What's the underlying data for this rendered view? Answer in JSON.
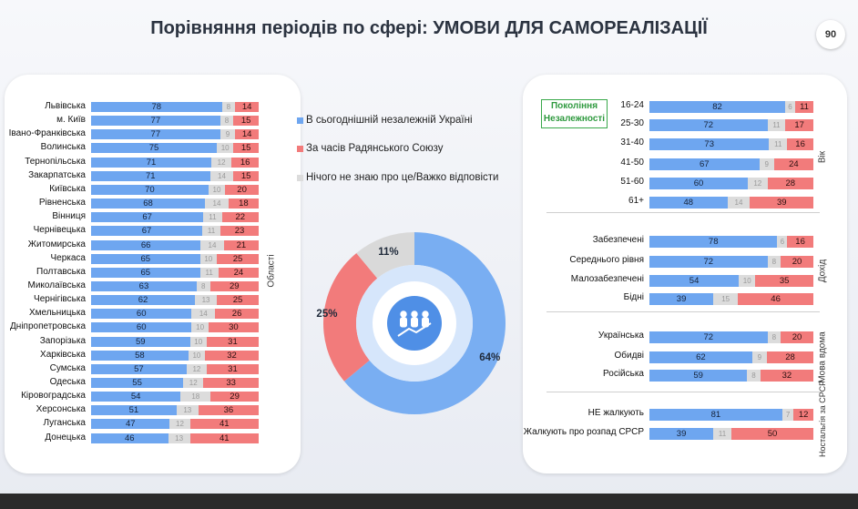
{
  "page": {
    "title": "Порівняння періодів по сфері: УМОВИ ДЛЯ САМОРЕАЛІЗАЦІЇ",
    "page_number": "90"
  },
  "colors": {
    "blue": "#6ea6f0",
    "red": "#f27b7b",
    "gray": "#dcdcdc",
    "donut_blue": "#79aef2",
    "donut_red": "#f27b7b",
    "donut_gray": "#d9d9d9",
    "generation_green": "#39a84a"
  },
  "legend": [
    {
      "label": "В сьогоднішній незалежній Україні",
      "color": "#6ea6f0"
    },
    {
      "label": "За часів Радянського Союзу",
      "color": "#f27b7b"
    },
    {
      "label": "Нічого не знаю про це/Важко відповісти",
      "color": "#dcdcdc"
    }
  ],
  "generation_label": "Покоління Незалежності",
  "chart_data": [
    {
      "type": "bar",
      "orientation": "horizontal",
      "stacked": true,
      "group_label": "Області",
      "categories": [
        "Львівська",
        "м. Київ",
        "Івано-Франківська",
        "Волинська",
        "Тернопільська",
        "Закарпатська",
        "Київська",
        "Рівненська",
        "Вінниця",
        "Чернівецька",
        "Житомирська",
        "Черкаса",
        "Полтавська",
        "Миколаївська",
        "Чернігівська",
        "Хмельницька",
        "Дніпропетровська",
        "Запорізька",
        "Харківська",
        "Сумська",
        "Одеська",
        "Кіровоградська",
        "Херсонська",
        "Луганська",
        "Донецька"
      ],
      "series": [
        {
          "name": "В сьогоднішній незалежній Україні",
          "values": [
            78,
            77,
            77,
            75,
            71,
            71,
            70,
            68,
            67,
            67,
            66,
            65,
            65,
            63,
            62,
            60,
            60,
            59,
            58,
            57,
            55,
            54,
            51,
            47,
            46
          ]
        },
        {
          "name": "Нічого не знаю про це/Важко відповісти",
          "values": [
            8,
            8,
            9,
            10,
            12,
            14,
            10,
            14,
            11,
            11,
            14,
            10,
            11,
            8,
            13,
            14,
            10,
            10,
            10,
            12,
            12,
            18,
            13,
            12,
            13
          ]
        },
        {
          "name": "За часів Радянського Союзу",
          "values": [
            14,
            15,
            14,
            15,
            16,
            15,
            20,
            18,
            22,
            23,
            21,
            25,
            24,
            29,
            25,
            26,
            30,
            31,
            32,
            31,
            33,
            29,
            36,
            41,
            41
          ]
        }
      ]
    },
    {
      "type": "pie",
      "variant": "donut",
      "labels": [
        "В сьогоднішній незалежній Україні",
        "За часів Радянського Союзу",
        "Нічого не знаю про це/Важко відповісти"
      ],
      "values": [
        64,
        25,
        11
      ],
      "value_labels": [
        "64%",
        "25%",
        "11%"
      ]
    },
    {
      "type": "bar",
      "orientation": "horizontal",
      "stacked": true,
      "groups": [
        {
          "group_label": "Вік",
          "categories": [
            "16-24",
            "25-30",
            "31-40",
            "41-50",
            "51-60",
            "61+"
          ],
          "series": [
            {
              "name": "В сьогоднішній незалежній Україні",
              "values": [
                82,
                72,
                73,
                67,
                60,
                48
              ]
            },
            {
              "name": "Нічого не знаю про це/Важко відповісти",
              "values": [
                6,
                11,
                11,
                9,
                12,
                14
              ]
            },
            {
              "name": "За часів Радянського Союзу",
              "values": [
                11,
                17,
                16,
                24,
                28,
                39
              ]
            }
          ]
        },
        {
          "group_label": "Дохід",
          "categories": [
            "Забезпечені",
            "Середнього рівня",
            "Малозабезпечені",
            "Бідні"
          ],
          "series": [
            {
              "name": "В сьогоднішній незалежній Україні",
              "values": [
                78,
                72,
                54,
                39
              ]
            },
            {
              "name": "Нічого не знаю про це/Важко відповісти",
              "values": [
                6,
                8,
                10,
                15
              ]
            },
            {
              "name": "За часів Радянського Союзу",
              "values": [
                16,
                20,
                35,
                46
              ]
            }
          ]
        },
        {
          "group_label": "Мова вдома",
          "categories": [
            "Українська",
            "Обидві",
            "Російська"
          ],
          "series": [
            {
              "name": "В сьогоднішній незалежній Україні",
              "values": [
                72,
                62,
                59
              ]
            },
            {
              "name": "Нічого не знаю про це/Важко відповісти",
              "values": [
                8,
                9,
                8
              ]
            },
            {
              "name": "За часів Радянського Союзу",
              "values": [
                20,
                28,
                32
              ]
            }
          ]
        },
        {
          "group_label": "Ностальгія за СРСР",
          "categories": [
            "НЕ жалкують",
            "Жалкують про розпад СРСР"
          ],
          "series": [
            {
              "name": "В сьогоднішній незалежній Україні",
              "values": [
                81,
                39
              ]
            },
            {
              "name": "Нічого не знаю про це/Важко відповісти",
              "values": [
                7,
                11
              ]
            },
            {
              "name": "За часів Радянського Союзу",
              "values": [
                12,
                50
              ]
            }
          ]
        }
      ]
    }
  ]
}
